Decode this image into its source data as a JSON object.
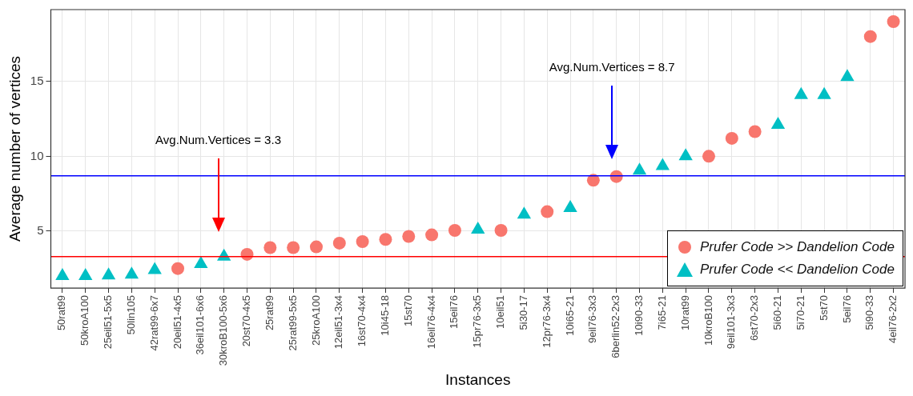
{
  "chart_data": {
    "type": "scatter",
    "xlabel": "Instances",
    "ylabel": "Average number of vertices",
    "categories": [
      "50rat99",
      "50kroA100",
      "25eil51-5x5",
      "50lin105",
      "42rat99-6x7",
      "20eil51-4x5",
      "36eil101-6x6",
      "30kroB100-5x6",
      "20st70-4x5",
      "25rat99",
      "25rat99-5x5",
      "25kroA100",
      "12eil51-3x4",
      "16st70-4x4",
      "10i45-18",
      "15st70",
      "16eil76-4x4",
      "15eil76",
      "15pr76-3x5",
      "10eil51",
      "5i30-17",
      "12pr76-3x4",
      "10i65-21",
      "9eil76-3x3",
      "6berlin52-2x3",
      "10i90-33",
      "7i65-21",
      "10rat99",
      "10kroB100",
      "9eil101-3x3",
      "6st70-2x3",
      "5i60-21",
      "5i70-21",
      "5st70",
      "5eil76",
      "5i90-33",
      "4eil76-2x2"
    ],
    "series": [
      {
        "name": "Prufer Code >> Dandelion Code",
        "color": "#f8766d",
        "marker": "circle",
        "values": [
          null,
          null,
          null,
          null,
          null,
          2.5,
          null,
          null,
          3.45,
          3.9,
          3.9,
          3.95,
          4.2,
          4.3,
          4.45,
          4.65,
          4.75,
          5.05,
          null,
          5.05,
          null,
          6.3,
          null,
          8.4,
          8.65,
          null,
          null,
          null,
          10.0,
          11.2,
          11.65,
          null,
          null,
          null,
          null,
          18.0,
          19.0
        ]
      },
      {
        "name": "Prufer Code << Dandelion Code",
        "color": "#00bfc4",
        "marker": "triangle",
        "values": [
          2.0,
          2.0,
          2.05,
          2.1,
          2.4,
          null,
          2.8,
          3.3,
          null,
          null,
          null,
          null,
          null,
          null,
          null,
          null,
          null,
          null,
          5.1,
          null,
          6.1,
          null,
          6.55,
          null,
          null,
          9.05,
          9.35,
          10.0,
          null,
          null,
          null,
          12.1,
          14.1,
          14.1,
          15.3,
          null,
          null
        ]
      }
    ],
    "ylim": [
      1.2,
      19.8
    ],
    "yticks": [
      5,
      10,
      15
    ],
    "grid": true,
    "legend": "bottom right",
    "ref_lines": [
      {
        "axis": "y",
        "value": 3.3,
        "color": "#ff0000"
      },
      {
        "axis": "y",
        "value": 8.7,
        "color": "#0000ff"
      }
    ],
    "annotations": [
      "Avg.Num.Vertices = 3.3",
      "Avg.Num.Vertices = 8.7"
    ]
  }
}
